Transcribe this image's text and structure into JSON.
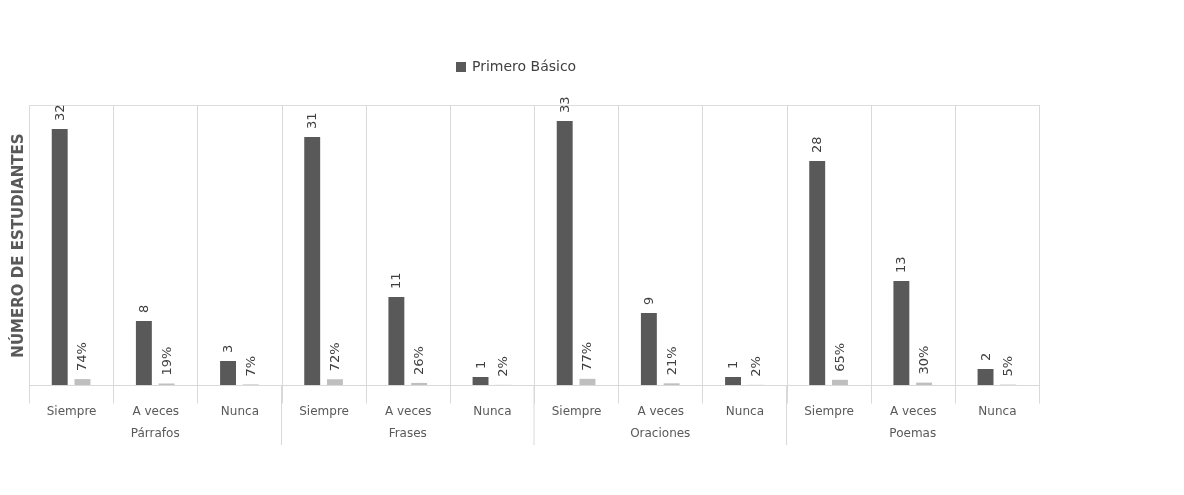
{
  "chart_data": {
    "type": "bar",
    "ylabel": "NÚMERO DE ESTUDIANTES",
    "categories": [
      "Siempre",
      "A veces",
      "Nunca",
      "Siempre",
      "A veces",
      "Nunca",
      "Siempre",
      "A veces",
      "Nunca",
      "Siempre",
      "A veces",
      "Nunca"
    ],
    "series": [
      {
        "name": "Primero Básico",
        "color": "#595959",
        "values": [
          32,
          8,
          3,
          31,
          11,
          1,
          33,
          9,
          1,
          28,
          13,
          2
        ],
        "value_labels": [
          "32",
          "8",
          "3",
          "31",
          "11",
          "1",
          "33",
          "9",
          "1",
          "28",
          "13",
          "2"
        ]
      },
      {
        "color": "#bfbfbf",
        "values": [
          0.74,
          0.19,
          0.07,
          0.72,
          0.26,
          0.02,
          0.77,
          0.21,
          0.02,
          0.65,
          0.3,
          0.05
        ],
        "value_labels": [
          "74%",
          "19%",
          "7%",
          "72%",
          "26%",
          "2%",
          "77%",
          "21%",
          "2%",
          "65%",
          "30%",
          "5%"
        ]
      }
    ],
    "annotations": [
      "Párrafos",
      "Frases",
      "Oraciones",
      "Poemas"
    ],
    "tick_labels": "x",
    "grid": "x",
    "legend": "top"
  }
}
